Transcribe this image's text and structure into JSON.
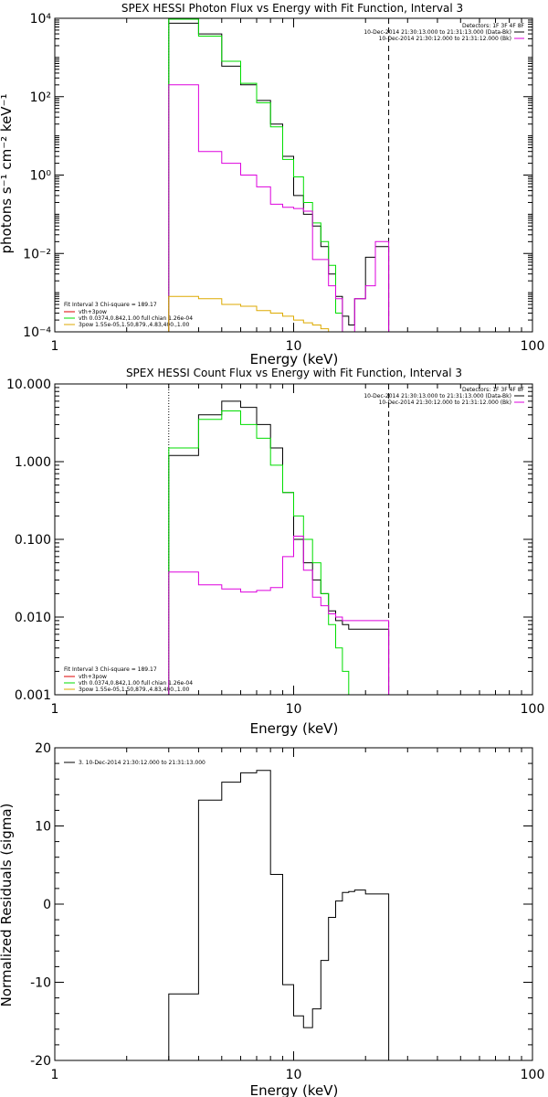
{
  "chart_data": [
    {
      "type": "line",
      "title": "SPEX HESSI Photon Flux vs Energy with Fit Function, Interval 3",
      "xlabel": "Energy (keV)",
      "ylabel": "photons s⁻¹ cm⁻² keV⁻¹",
      "xscale": "log",
      "yscale": "log",
      "xlim": [
        1,
        100
      ],
      "ylim": [
        0.0001,
        10000
      ],
      "x_ticks": [
        1,
        10,
        100
      ],
      "x_tick_labels": [
        "1",
        "10",
        "100"
      ],
      "y_ticks": [
        0.0001,
        0.01,
        1,
        100,
        10000
      ],
      "y_tick_labels": [
        "10⁻⁴",
        "10⁻²",
        "10⁰",
        "10²",
        "10⁴"
      ],
      "vlines": [
        {
          "x": 3,
          "color": "#00aa00",
          "style": "dotted"
        },
        {
          "x": 25,
          "color": "#000000",
          "style": "dashed"
        }
      ],
      "edges": [
        3,
        4,
        5,
        6,
        7,
        8,
        9,
        10,
        11,
        12,
        13,
        14,
        15,
        16,
        17,
        18,
        20,
        22,
        25
      ],
      "series": [
        {
          "color": "#000000",
          "values": [
            7500,
            4000,
            600,
            200,
            80,
            20,
            3,
            0.3,
            0.1,
            0.05,
            0.015,
            0.003,
            0.0008,
            0.00025,
            0.00015,
            0.0007,
            0.008,
            0.015
          ]
        },
        {
          "color": "#00dd00",
          "values": [
            9500,
            3500,
            800,
            220,
            70,
            17,
            2.5,
            0.9,
            0.2,
            0.06,
            0.02,
            0.005,
            0.0003,
            8e-05
          ]
        },
        {
          "color": "#dd00dd",
          "values": [
            200,
            4,
            2,
            1,
            0.5,
            0.18,
            0.15,
            0.14,
            0.12,
            0.007,
            0.007,
            0.0015,
            0.0007,
            0.0001,
            0.0001,
            0.0007,
            0.0015,
            0.02
          ]
        },
        {
          "color": "#ddaa00",
          "values": [
            0.0008,
            0.0007,
            0.0005,
            0.00045,
            0.00035,
            0.0003,
            0.00025,
            0.0002,
            0.00017,
            0.00015,
            0.00012,
            0.0001
          ]
        }
      ],
      "detectors": {
        "title": "Detectors: 1F 3F 4F 8F",
        "lines": [
          {
            "text": "10-Dec-2014 21:30:13.000 to 21:31:13.000 (Data-Bk)",
            "color": "#000000"
          },
          {
            "text": "10-Dec-2014 21:30:12.000 to 21:31:12.000 (Bk)",
            "color": "#dd00dd"
          }
        ]
      },
      "fit_legend": {
        "title": "Fit Interval 3   Chi-square = 189.17",
        "lines": [
          {
            "text": "vth+3pow",
            "color": "#dd0000"
          },
          {
            "text": "vth 0.0374,0.842,1.00  full chian 1.26e-04",
            "color": "#00dd00"
          },
          {
            "text": "3pow 1.55e-05,1.50,879.,4.83,400.,1.00",
            "color": "#ddaa00"
          }
        ]
      }
    },
    {
      "type": "line",
      "title": "SPEX HESSI Count Flux vs Energy with Fit Function, Interval 3",
      "xlabel": "Energy (keV)",
      "ylabel": "",
      "xscale": "log",
      "yscale": "log",
      "xlim": [
        1,
        100
      ],
      "ylim": [
        0.001,
        10
      ],
      "x_ticks": [
        1,
        10,
        100
      ],
      "x_tick_labels": [
        "1",
        "10",
        "100"
      ],
      "y_ticks": [
        0.001,
        0.01,
        0.1,
        1,
        10
      ],
      "y_tick_labels": [
        "0.001",
        "0.010",
        "0.100",
        "1.000",
        "10.000"
      ],
      "vlines": [
        {
          "x": 3,
          "color": "#000000",
          "style": "dotted"
        },
        {
          "x": 25,
          "color": "#000000",
          "style": "dashed"
        }
      ],
      "edges": [
        3,
        4,
        5,
        6,
        7,
        8,
        9,
        10,
        11,
        12,
        13,
        14,
        15,
        16,
        17,
        18,
        20,
        22,
        25
      ],
      "series": [
        {
          "color": "#000000",
          "values": [
            1.2,
            4,
            6,
            5,
            3,
            1.5,
            0.4,
            0.1,
            0.05,
            0.03,
            0.02,
            0.012,
            0.009,
            0.008,
            0.007,
            0.007,
            0.007,
            0.007
          ]
        },
        {
          "color": "#00dd00",
          "values": [
            1.5,
            3.5,
            4.5,
            3,
            2,
            0.9,
            0.4,
            0.2,
            0.1,
            0.05,
            0.02,
            0.008,
            0.004,
            0.002,
            0.001
          ]
        },
        {
          "color": "#dd00dd",
          "values": [
            0.038,
            0.026,
            0.023,
            0.021,
            0.022,
            0.024,
            0.06,
            0.11,
            0.04,
            0.018,
            0.014,
            0.011,
            0.01,
            0.009,
            0.009,
            0.009,
            0.009,
            0.009
          ]
        }
      ],
      "detectors": {
        "title": "Detectors: 1F 3F 4F 8F",
        "lines": [
          {
            "text": "10-Dec-2014 21:30:13.000 to 21:31:13.000 (Data-Bk)",
            "color": "#000000"
          },
          {
            "text": "10-Dec-2014 21:30:12.000 to 21:31:12.000 (Bk)",
            "color": "#dd00dd"
          }
        ]
      },
      "fit_legend": {
        "title": "Fit Interval 3   Chi-square = 189.17",
        "lines": [
          {
            "text": "vth+3pow",
            "color": "#dd0000"
          },
          {
            "text": "vth 0.0374,0.842,1.00  full chian 1.26e-04",
            "color": "#00dd00"
          },
          {
            "text": "3pow 1.55e-05,1.50,879.,4.83,400.,1.00",
            "color": "#ddaa00"
          }
        ]
      }
    },
    {
      "type": "line",
      "title": "",
      "xlabel": "Energy (keV)",
      "ylabel": "Normalized Residuals (sigma)",
      "xscale": "log",
      "yscale": "linear",
      "xlim": [
        1,
        100
      ],
      "ylim": [
        -20,
        20
      ],
      "x_ticks": [
        1,
        10,
        100
      ],
      "x_tick_labels": [
        "1",
        "10",
        "100"
      ],
      "y_ticks": [
        -20,
        -10,
        0,
        10,
        20
      ],
      "y_tick_labels": [
        "-20",
        "-10",
        "0",
        "10",
        "20"
      ],
      "vlines": [],
      "edges": [
        3,
        4,
        5,
        6,
        7,
        8,
        9,
        10,
        11,
        12,
        13,
        14,
        15,
        16,
        17,
        18,
        20,
        22,
        25
      ],
      "series": [
        {
          "color": "#000000",
          "values": [
            -11.5,
            13.3,
            15.6,
            16.8,
            17.1,
            3.8,
            -10.3,
            -14.3,
            -15.8,
            -13.4,
            -7.2,
            -1.7,
            0.4,
            1.5,
            1.6,
            1.8,
            1.3,
            1.3
          ]
        }
      ],
      "legend": {
        "text": "3. 10-Dec-2014 21:30:12.000 to 21:31:13.000",
        "color": "#000000"
      }
    }
  ]
}
